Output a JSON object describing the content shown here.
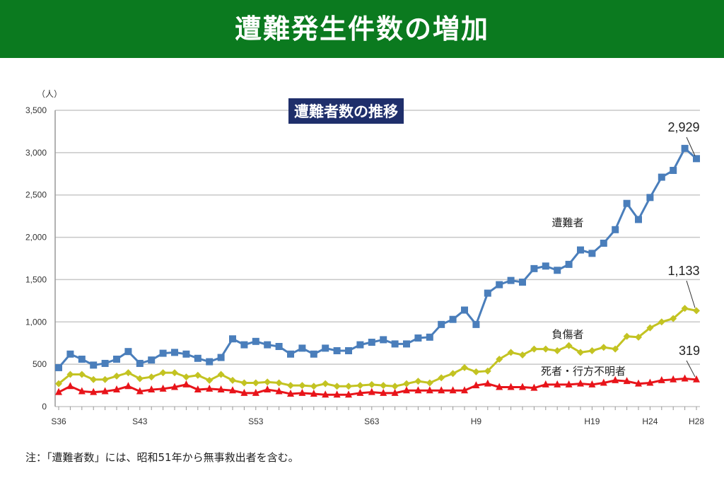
{
  "header": {
    "title": "遭難発生件数の増加"
  },
  "footnote": "注：「遭難者数」には、昭和51年から無事救出者を含む。",
  "chart_data": {
    "type": "line",
    "title": "遭難者数の推移",
    "ylabel": "（人）",
    "ylim": [
      0,
      3500
    ],
    "yticks": [
      "0",
      "500",
      "1,000",
      "1,500",
      "2,000",
      "2,500",
      "3,000",
      "3,500"
    ],
    "ytick_values": [
      0,
      500,
      1000,
      1500,
      2000,
      2500,
      3000,
      3500
    ],
    "xtick_labels": [
      {
        "label": "S36",
        "index": 0
      },
      {
        "label": "S43",
        "index": 7
      },
      {
        "label": "S53",
        "index": 17
      },
      {
        "label": "S63",
        "index": 27
      },
      {
        "label": "H9",
        "index": 36
      },
      {
        "label": "H19",
        "index": 46
      },
      {
        "label": "H24",
        "index": 51
      },
      {
        "label": "H28",
        "index": 55
      }
    ],
    "grid": true,
    "series": [
      {
        "name": "遭難者",
        "color": "#4a7ebb",
        "marker": "square",
        "end_label": "2,929",
        "values": [
          460,
          620,
          560,
          490,
          510,
          560,
          650,
          510,
          550,
          630,
          640,
          620,
          570,
          530,
          580,
          800,
          730,
          770,
          730,
          710,
          620,
          690,
          620,
          690,
          660,
          660,
          730,
          760,
          790,
          740,
          740,
          810,
          820,
          970,
          1030,
          1140,
          970,
          1340,
          1440,
          1490,
          1470,
          1630,
          1660,
          1610,
          1680,
          1850,
          1810,
          1930,
          2090,
          2400,
          2210,
          2470,
          2710,
          2790,
          3050,
          2929
        ]
      },
      {
        "name": "負傷者",
        "color": "#c3c322",
        "marker": "diamond",
        "end_label": "1,133",
        "values": [
          270,
          380,
          380,
          320,
          320,
          360,
          400,
          330,
          350,
          400,
          400,
          350,
          370,
          310,
          380,
          310,
          280,
          280,
          290,
          280,
          250,
          250,
          240,
          270,
          240,
          240,
          250,
          260,
          250,
          240,
          270,
          300,
          280,
          340,
          390,
          460,
          410,
          420,
          560,
          640,
          610,
          680,
          680,
          660,
          720,
          640,
          660,
          700,
          680,
          830,
          820,
          930,
          1000,
          1040,
          1160,
          1133
        ]
      },
      {
        "name": "死者・行方不明者",
        "color": "#e8141a",
        "marker": "triangle",
        "end_label": "319",
        "values": [
          170,
          240,
          180,
          170,
          180,
          200,
          240,
          180,
          200,
          210,
          230,
          260,
          200,
          210,
          200,
          190,
          160,
          160,
          200,
          180,
          150,
          160,
          150,
          140,
          140,
          140,
          160,
          170,
          160,
          160,
          190,
          190,
          190,
          190,
          190,
          190,
          250,
          270,
          230,
          230,
          230,
          220,
          260,
          260,
          260,
          270,
          260,
          280,
          310,
          300,
          270,
          280,
          310,
          320,
          330,
          319
        ]
      }
    ]
  }
}
